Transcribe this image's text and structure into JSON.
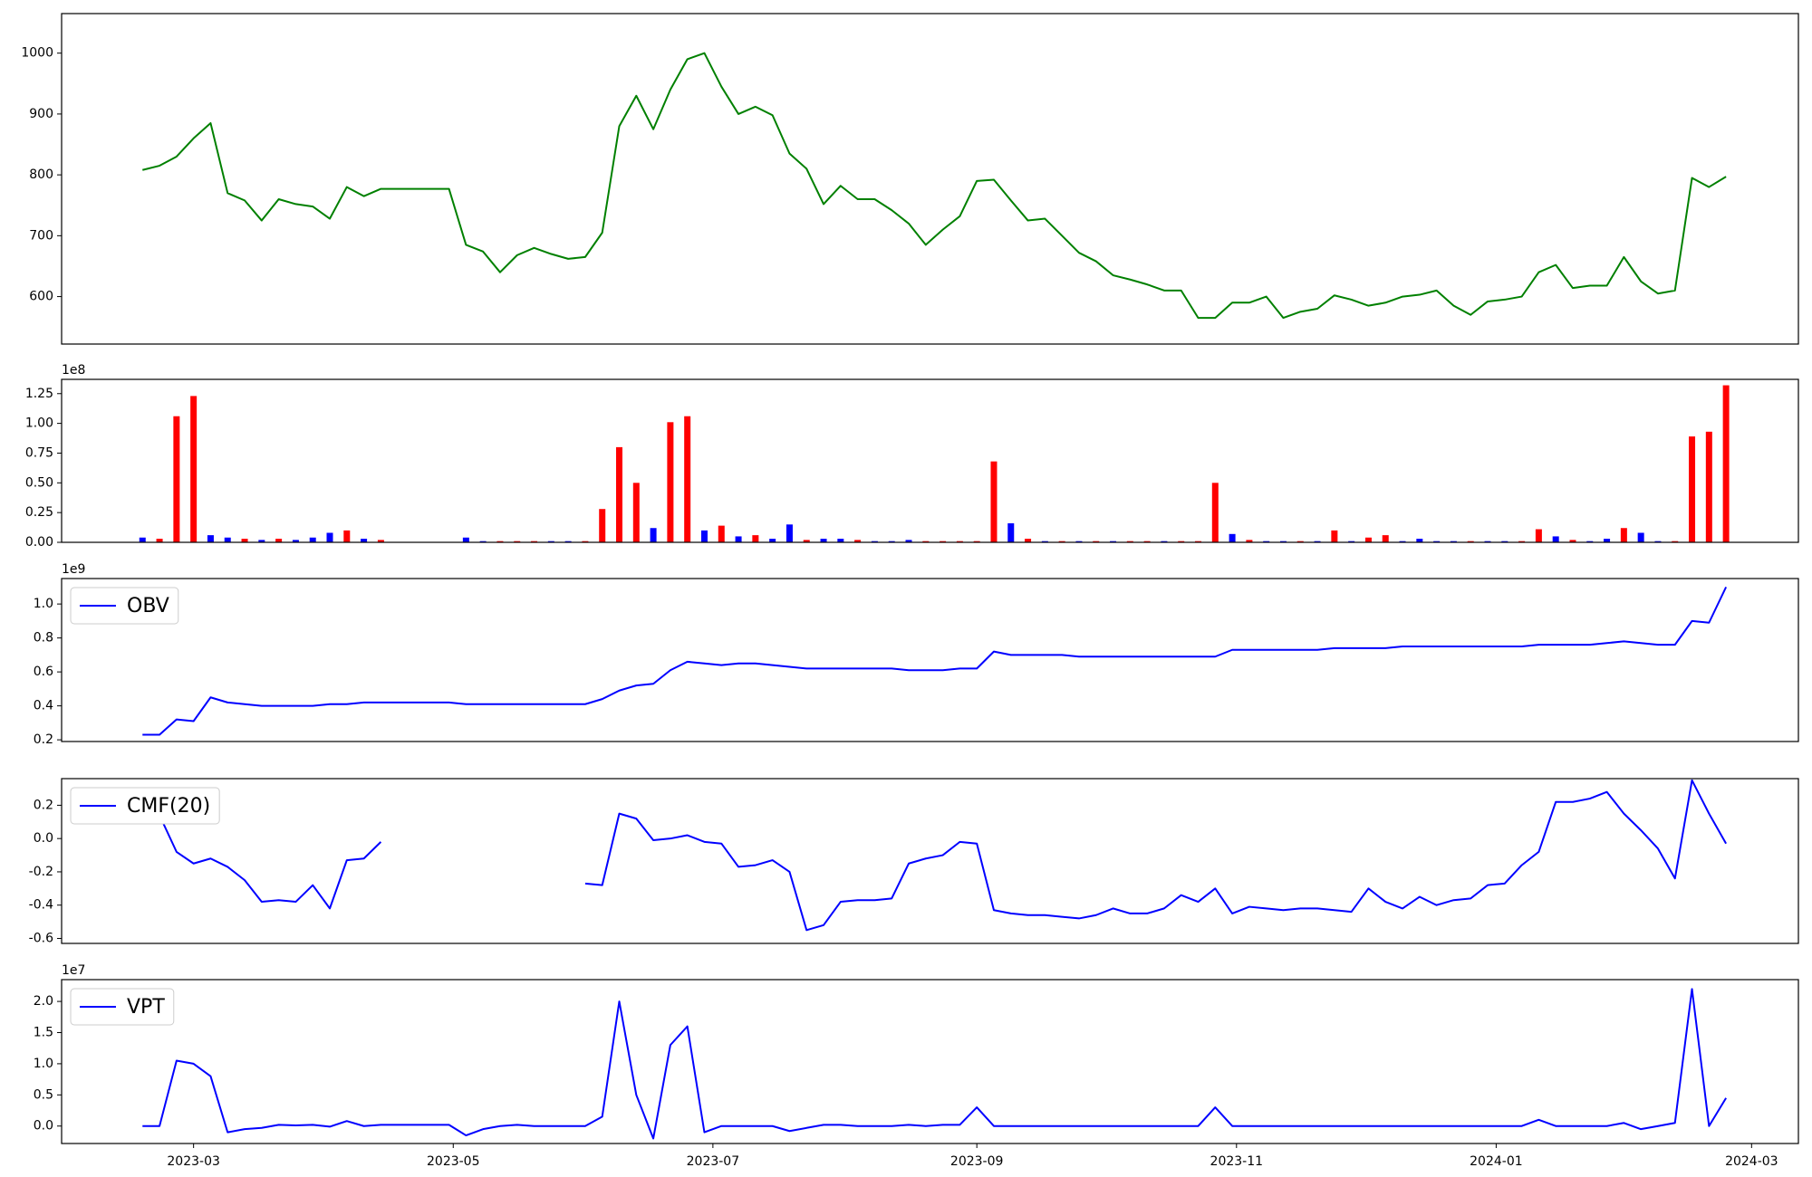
{
  "chart_data": [
    {
      "type": "line",
      "color": "green",
      "x": [
        19405,
        19409,
        19413,
        19417,
        19421,
        19425,
        19429,
        19433,
        19437,
        19441,
        19445,
        19449,
        19453,
        19457,
        19461,
        19465,
        19469,
        19473,
        19477,
        19481,
        19485,
        19489,
        19493,
        19497,
        19501,
        19505,
        19509,
        19513,
        19517,
        19521,
        19525,
        19529,
        19533,
        19537,
        19541,
        19545,
        19549,
        19553,
        19557,
        19561,
        19565,
        19569,
        19573,
        19577,
        19581,
        19585,
        19589,
        19593,
        19597,
        19601,
        19605,
        19609,
        19613,
        19617,
        19621,
        19625,
        19629,
        19633,
        19637,
        19641,
        19645,
        19649,
        19653,
        19657,
        19661,
        19665,
        19669,
        19673,
        19677,
        19681,
        19685,
        19689,
        19693,
        19697,
        19701,
        19705,
        19709,
        19713,
        19717,
        19721,
        19725,
        19729,
        19733,
        19737,
        19741,
        19745,
        19749,
        19753,
        19757,
        19761,
        19765,
        19769,
        19773,
        19777
      ],
      "values": [
        808,
        815,
        830,
        860,
        885,
        770,
        758,
        725,
        760,
        752,
        748,
        728,
        780,
        765,
        777,
        777,
        777,
        777,
        777,
        685,
        674,
        640,
        668,
        680,
        670,
        662,
        665,
        705,
        880,
        930,
        875,
        940,
        990,
        1000,
        945,
        900,
        912,
        898,
        835,
        810,
        752,
        782,
        760,
        760,
        742,
        720,
        685,
        710,
        732,
        790,
        792,
        758,
        725,
        728,
        700,
        672,
        658,
        635,
        628,
        620,
        610,
        610,
        565,
        565,
        590,
        590,
        600,
        565,
        575,
        580,
        602,
        595,
        585,
        590,
        600,
        603,
        610,
        585,
        570,
        592,
        595,
        600,
        640,
        652,
        614,
        618,
        618,
        665,
        625,
        605,
        610,
        795,
        780,
        797
      ],
      "xlim": [
        19386,
        19794
      ],
      "ylim": [
        522,
        1065
      ],
      "yticks": [
        600,
        700,
        800,
        900,
        1000
      ]
    },
    {
      "type": "bar",
      "offset_label": "1e8",
      "x": [
        19405,
        19409,
        19413,
        19417,
        19421,
        19425,
        19429,
        19433,
        19437,
        19441,
        19445,
        19449,
        19453,
        19457,
        19461,
        19465,
        19469,
        19473,
        19477,
        19481,
        19485,
        19489,
        19493,
        19497,
        19501,
        19505,
        19509,
        19513,
        19517,
        19521,
        19525,
        19529,
        19533,
        19537,
        19541,
        19545,
        19549,
        19553,
        19557,
        19561,
        19565,
        19569,
        19573,
        19577,
        19581,
        19585,
        19589,
        19593,
        19597,
        19601,
        19605,
        19609,
        19613,
        19617,
        19621,
        19625,
        19629,
        19633,
        19637,
        19641,
        19645,
        19649,
        19653,
        19657,
        19661,
        19665,
        19669,
        19673,
        19677,
        19681,
        19685,
        19689,
        19693,
        19697,
        19701,
        19705,
        19709,
        19713,
        19717,
        19721,
        19725,
        19729,
        19733,
        19737,
        19741,
        19745,
        19749,
        19753,
        19757,
        19761,
        19765,
        19769,
        19773,
        19777
      ],
      "values": [
        0.04,
        0.03,
        1.06,
        1.23,
        0.06,
        0.04,
        0.03,
        0.02,
        0.03,
        0.02,
        0.04,
        0.08,
        0.1,
        0.03,
        0.02,
        null,
        null,
        null,
        null,
        0.04,
        0.01,
        0.01,
        0.01,
        0.01,
        0.01,
        0.01,
        0.01,
        0.28,
        0.8,
        0.5,
        0.12,
        1.01,
        1.06,
        0.1,
        0.14,
        0.05,
        0.06,
        0.03,
        0.15,
        0.02,
        0.03,
        0.03,
        0.02,
        0.01,
        0.01,
        0.02,
        0.01,
        0.01,
        0.01,
        0.01,
        0.68,
        0.16,
        0.03,
        0.01,
        0.01,
        0.01,
        0.01,
        0.01,
        0.01,
        0.01,
        0.01,
        0.01,
        0.01,
        0.5,
        0.07,
        0.02,
        0.01,
        0.01,
        0.01,
        0.01,
        0.1,
        0.01,
        0.04,
        0.06,
        0.01,
        0.03,
        0.01,
        0.01,
        0.01,
        0.01,
        0.01,
        0.01,
        0.11,
        0.05,
        0.02,
        0.01,
        0.03,
        0.12,
        0.08,
        0.01,
        0.01,
        0.89,
        0.93,
        1.32
      ],
      "colors": [
        "blue",
        "red",
        "red",
        "red",
        "blue",
        "blue",
        "red",
        "blue",
        "red",
        "blue",
        "blue",
        "blue",
        "red",
        "blue",
        "red",
        "blue",
        "blue",
        "blue",
        "blue",
        "blue",
        "blue",
        "red",
        "red",
        "red",
        "blue",
        "blue",
        "red",
        "red",
        "red",
        "red",
        "blue",
        "red",
        "red",
        "blue",
        "red",
        "blue",
        "red",
        "blue",
        "blue",
        "red",
        "blue",
        "blue",
        "red",
        "blue",
        "blue",
        "blue",
        "red",
        "red",
        "red",
        "red",
        "red",
        "blue",
        "red",
        "blue",
        "red",
        "blue",
        "red",
        "blue",
        "red",
        "red",
        "blue",
        "red",
        "red",
        "red",
        "blue",
        "red",
        "blue",
        "blue",
        "red",
        "blue",
        "red",
        "blue",
        "red",
        "red",
        "blue",
        "blue",
        "blue",
        "blue",
        "red",
        "blue",
        "blue",
        "red",
        "red",
        "blue",
        "red",
        "blue",
        "blue",
        "red",
        "blue",
        "blue",
        "red",
        "red",
        "red",
        "red"
      ],
      "xlim": [
        19386,
        19794
      ],
      "ylim": [
        0,
        1.37
      ],
      "yticks": [
        {
          "value": 0,
          "label": "0.00"
        },
        {
          "value": 0.25,
          "label": "0.25"
        },
        {
          "value": 0.5,
          "label": "0.50"
        },
        {
          "value": 0.75,
          "label": "0.75"
        },
        {
          "value": 1,
          "label": "1.00"
        },
        {
          "value": 1.25,
          "label": "1.25"
        }
      ]
    },
    {
      "type": "line",
      "offset_label": "1e9",
      "legend": "upper left",
      "x": [
        19405,
        19409,
        19413,
        19417,
        19421,
        19425,
        19429,
        19433,
        19437,
        19441,
        19445,
        19449,
        19453,
        19457,
        19461,
        19465,
        19469,
        19473,
        19477,
        19481,
        19485,
        19489,
        19493,
        19497,
        19501,
        19505,
        19509,
        19513,
        19517,
        19521,
        19525,
        19529,
        19533,
        19537,
        19541,
        19545,
        19549,
        19553,
        19557,
        19561,
        19565,
        19569,
        19573,
        19577,
        19581,
        19585,
        19589,
        19593,
        19597,
        19601,
        19605,
        19609,
        19613,
        19617,
        19621,
        19625,
        19629,
        19633,
        19637,
        19641,
        19645,
        19649,
        19653,
        19657,
        19661,
        19665,
        19669,
        19673,
        19677,
        19681,
        19685,
        19689,
        19693,
        19697,
        19701,
        19705,
        19709,
        19713,
        19717,
        19721,
        19725,
        19729,
        19733,
        19737,
        19741,
        19745,
        19749,
        19753,
        19757,
        19761,
        19765,
        19769,
        19773,
        19777
      ],
      "series": [
        {
          "name": "OBV",
          "color": "blue",
          "values": [
            0.23,
            0.23,
            0.32,
            0.31,
            0.45,
            0.42,
            0.41,
            0.4,
            0.4,
            0.4,
            0.4,
            0.41,
            0.41,
            0.42,
            0.42,
            0.42,
            0.42,
            0.42,
            0.42,
            0.41,
            0.41,
            0.41,
            0.41,
            0.41,
            0.41,
            0.41,
            0.41,
            0.44,
            0.49,
            0.52,
            0.53,
            0.61,
            0.66,
            0.65,
            0.64,
            0.65,
            0.65,
            0.64,
            0.63,
            0.62,
            0.62,
            0.62,
            0.62,
            0.62,
            0.62,
            0.61,
            0.61,
            0.61,
            0.62,
            0.62,
            0.72,
            0.7,
            0.7,
            0.7,
            0.7,
            0.69,
            0.69,
            0.69,
            0.69,
            0.69,
            0.69,
            0.69,
            0.69,
            0.69,
            0.73,
            0.73,
            0.73,
            0.73,
            0.73,
            0.73,
            0.74,
            0.74,
            0.74,
            0.74,
            0.75,
            0.75,
            0.75,
            0.75,
            0.75,
            0.75,
            0.75,
            0.75,
            0.76,
            0.76,
            0.76,
            0.76,
            0.77,
            0.78,
            0.77,
            0.76,
            0.76,
            0.9,
            0.89,
            1.1
          ]
        }
      ],
      "xlim": [
        19386,
        19794
      ],
      "ylim": [
        0.19,
        1.15
      ],
      "yticks": [
        0.2,
        0.4,
        0.6,
        0.8,
        {
          "value": 1,
          "label": "1.0"
        }
      ]
    },
    {
      "type": "line",
      "legend": "upper left",
      "x": [
        19405,
        19409,
        19413,
        19417,
        19421,
        19425,
        19429,
        19433,
        19437,
        19441,
        19445,
        19449,
        19453,
        19457,
        19461,
        19465,
        19469,
        19473,
        19477,
        19481,
        19485,
        19489,
        19493,
        19497,
        19501,
        19505,
        19509,
        19513,
        19517,
        19521,
        19525,
        19529,
        19533,
        19537,
        19541,
        19545,
        19549,
        19553,
        19557,
        19561,
        19565,
        19569,
        19573,
        19577,
        19581,
        19585,
        19589,
        19593,
        19597,
        19601,
        19605,
        19609,
        19613,
        19617,
        19621,
        19625,
        19629,
        19633,
        19637,
        19641,
        19645,
        19649,
        19653,
        19657,
        19661,
        19665,
        19669,
        19673,
        19677,
        19681,
        19685,
        19689,
        19693,
        19697,
        19701,
        19705,
        19709,
        19713,
        19717,
        19721,
        19725,
        19729,
        19733,
        19737,
        19741,
        19745,
        19749,
        19753,
        19757,
        19761,
        19765,
        19769,
        19773,
        19777
      ],
      "series": [
        {
          "name": "CMF(20)",
          "color": "blue",
          "values": [
            0.14,
            0.14,
            -0.08,
            -0.15,
            -0.12,
            -0.17,
            -0.25,
            -0.38,
            -0.37,
            -0.38,
            -0.28,
            -0.42,
            -0.13,
            -0.12,
            -0.02,
            null,
            null,
            null,
            null,
            null,
            null,
            null,
            null,
            null,
            null,
            null,
            -0.27,
            -0.28,
            0.15,
            0.12,
            -0.01,
            0,
            0.02,
            -0.02,
            -0.03,
            -0.17,
            -0.16,
            -0.13,
            -0.2,
            -0.55,
            -0.52,
            -0.38,
            -0.37,
            -0.37,
            -0.36,
            -0.15,
            -0.12,
            -0.1,
            -0.02,
            -0.03,
            -0.43,
            -0.45,
            -0.46,
            -0.46,
            -0.47,
            -0.48,
            -0.46,
            -0.42,
            -0.45,
            -0.45,
            -0.42,
            -0.34,
            -0.38,
            -0.3,
            -0.45,
            -0.41,
            -0.42,
            -0.43,
            -0.42,
            -0.42,
            -0.43,
            -0.44,
            -0.3,
            -0.38,
            -0.42,
            -0.35,
            -0.4,
            -0.37,
            -0.36,
            -0.28,
            -0.27,
            -0.16,
            -0.08,
            0.22,
            0.22,
            0.24,
            0.28,
            0.15,
            0.05,
            -0.06,
            -0.24,
            0.35,
            0.15,
            -0.03
          ]
        }
      ],
      "xlim": [
        19386,
        19794
      ],
      "ylim": [
        -0.63,
        0.36
      ],
      "yticks": [
        -0.6,
        -0.4,
        -0.2,
        {
          "value": 0,
          "label": "0.0"
        },
        0.2
      ]
    },
    {
      "type": "line",
      "offset_label": "1e7",
      "legend": "upper left",
      "x": [
        19405,
        19409,
        19413,
        19417,
        19421,
        19425,
        19429,
        19433,
        19437,
        19441,
        19445,
        19449,
        19453,
        19457,
        19461,
        19465,
        19469,
        19473,
        19477,
        19481,
        19485,
        19489,
        19493,
        19497,
        19501,
        19505,
        19509,
        19513,
        19517,
        19521,
        19525,
        19529,
        19533,
        19537,
        19541,
        19545,
        19549,
        19553,
        19557,
        19561,
        19565,
        19569,
        19573,
        19577,
        19581,
        19585,
        19589,
        19593,
        19597,
        19601,
        19605,
        19609,
        19613,
        19617,
        19621,
        19625,
        19629,
        19633,
        19637,
        19641,
        19645,
        19649,
        19653,
        19657,
        19661,
        19665,
        19669,
        19673,
        19677,
        19681,
        19685,
        19689,
        19693,
        19697,
        19701,
        19705,
        19709,
        19713,
        19717,
        19721,
        19725,
        19729,
        19733,
        19737,
        19741,
        19745,
        19749,
        19753,
        19757,
        19761,
        19765,
        19769,
        19773,
        19777
      ],
      "series": [
        {
          "name": "VPT",
          "color": "blue",
          "values": [
            0,
            0,
            1.05,
            1,
            0.8,
            -0.1,
            -0.05,
            -0.03,
            0.02,
            0.01,
            0.02,
            -0.01,
            0.08,
            0,
            0.02,
            0.02,
            0.02,
            0.02,
            0.02,
            -0.15,
            -0.05,
            0,
            0.02,
            0,
            0,
            0,
            0,
            0.15,
            2,
            0.5,
            -0.2,
            1.3,
            1.6,
            -0.1,
            0,
            0,
            0,
            0,
            -0.08,
            -0.03,
            0.02,
            0.02,
            0,
            0,
            0,
            0.02,
            0,
            0.02,
            0.02,
            0.3,
            0,
            0,
            0,
            0,
            0,
            0,
            0,
            0,
            0,
            0,
            0,
            0,
            0,
            0.3,
            0,
            0,
            0,
            0,
            0,
            0,
            0,
            0,
            0,
            0,
            0,
            0,
            0,
            0,
            0,
            0,
            0,
            0,
            0.1,
            0,
            0,
            0,
            0,
            0.05,
            -0.05,
            0,
            0.05,
            2.2,
            0,
            0.45
          ]
        }
      ],
      "xlim": [
        19386,
        19794
      ],
      "ylim": [
        -0.28,
        2.35
      ],
      "yticks": [
        {
          "value": 0,
          "label": "0.0"
        },
        0.5,
        {
          "value": 1,
          "label": "1.0"
        },
        1.5,
        {
          "value": 2,
          "label": "2.0"
        }
      ],
      "xticks": [
        {
          "value": 19417,
          "label": "2023-03"
        },
        {
          "value": 19478,
          "label": "2023-05"
        },
        {
          "value": 19539,
          "label": "2023-07"
        },
        {
          "value": 19601,
          "label": "2023-09"
        },
        {
          "value": 19662,
          "label": "2023-11"
        },
        {
          "value": 19723,
          "label": "2024-01"
        },
        {
          "value": 19783,
          "label": "2024-03"
        }
      ]
    }
  ]
}
